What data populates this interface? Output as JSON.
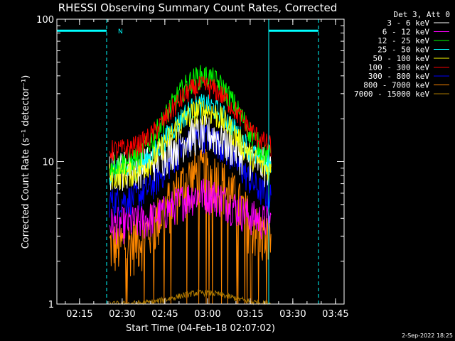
{
  "chart_data": {
    "type": "line",
    "title": "RHESSI Observing Summary Count Rates, Corrected",
    "xlabel": "Start Time (04-Feb-18 02:07:02)",
    "ylabel": "Corrected Count Rate (s⁻¹ detector⁻¹)",
    "x_ticks": [
      "02:15",
      "02:30",
      "02:45",
      "03:00",
      "03:15",
      "03:30",
      "03:45"
    ],
    "y_ticks": [
      "1",
      "10",
      "100"
    ],
    "y_scale": "log",
    "ylim": [
      1,
      100
    ],
    "xlim_minutes_after_start": [
      0,
      101
    ],
    "legend_title": "Det 3, Att 0",
    "legend_placement": "top-right outside",
    "series": [
      {
        "name": "3 - 6 keV",
        "color": "#ffffff",
        "base": 9.0,
        "peak": 16,
        "noise": 0.32
      },
      {
        "name": "6 - 12 keV",
        "color": "#ff00ff",
        "base": 3.7,
        "peak": 6,
        "noise": 0.3
      },
      {
        "name": "12 - 25 keV",
        "color": "#00ff00",
        "base": 9.5,
        "peak": 40,
        "noise": 0.2
      },
      {
        "name": "25 - 50 keV",
        "color": "#00ffff",
        "base": 8.5,
        "peak": 25,
        "noise": 0.2
      },
      {
        "name": "50 - 100 keV",
        "color": "#ffff00",
        "base": 8.0,
        "peak": 23,
        "noise": 0.22
      },
      {
        "name": "100 - 300 keV",
        "color": "#ff0000",
        "base": 12.0,
        "peak": 34,
        "noise": 0.18
      },
      {
        "name": "300 - 800 keV",
        "color": "#0000ff",
        "base": 5.3,
        "peak": 15,
        "noise": 0.25
      },
      {
        "name": "800 - 7000 keV",
        "color": "#ff8800",
        "base": 2.6,
        "peak": 8.5,
        "noise": 0.45
      },
      {
        "name": "7000 - 15000 keV",
        "color": "#aa7700",
        "base": 1.0,
        "peak": 1.2,
        "noise": 0.05
      }
    ],
    "observation_window_minutes": [
      18.5,
      75.5
    ],
    "flare_center_minutes": 51.5,
    "flare_width_minutes": 9.5,
    "time_step_minutes": 0.2,
    "status_bar": {
      "color": "#00ffff",
      "level": 83,
      "segments": [
        [
          0,
          17.5
        ],
        [
          74.5,
          92
        ]
      ],
      "marker_label": "N",
      "marker_minutes": 20.5,
      "vertical_solid_minutes": [
        0,
        74.5
      ],
      "vertical_dashed_minutes": [
        17.5,
        92
      ]
    }
  },
  "footer": {
    "timestamp": "2-Sep-2022 18:25"
  }
}
